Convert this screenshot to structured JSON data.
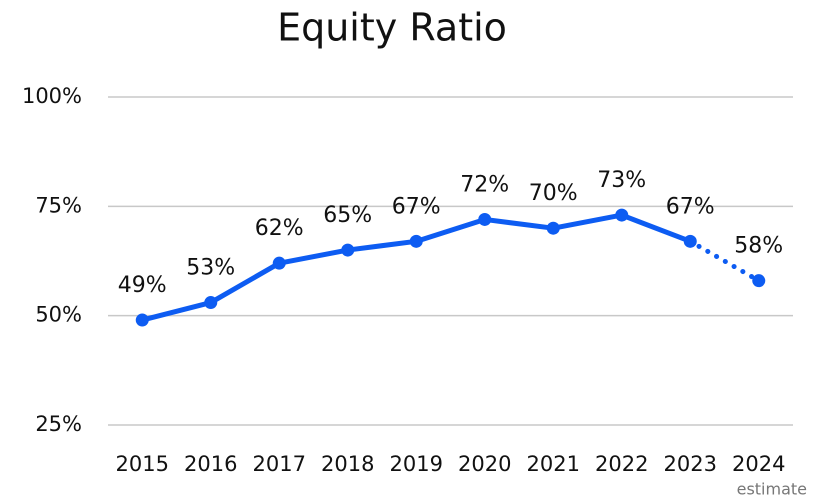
{
  "chart_data": {
    "type": "line",
    "title": "Equity Ratio",
    "categories": [
      "2015",
      "2016",
      "2017",
      "2018",
      "2019",
      "2020",
      "2021",
      "2022",
      "2023",
      "2024"
    ],
    "series": [
      {
        "name": "Equity Ratio",
        "color": "#0d5cf2",
        "values": [
          49,
          53,
          62,
          65,
          67,
          72,
          70,
          73,
          67,
          58
        ],
        "value_labels": [
          "49%",
          "53%",
          "62%",
          "65%",
          "67%",
          "72%",
          "70%",
          "73%",
          "67%",
          "58%"
        ]
      }
    ],
    "annotation": "estimate",
    "ylim": [
      25,
      100
    ],
    "yticks": [
      {
        "value": 25,
        "label": "25%"
      },
      {
        "value": 50,
        "label": "50%"
      },
      {
        "value": 75,
        "label": "75%"
      },
      {
        "value": 100,
        "label": "100%"
      }
    ],
    "grid": true
  }
}
